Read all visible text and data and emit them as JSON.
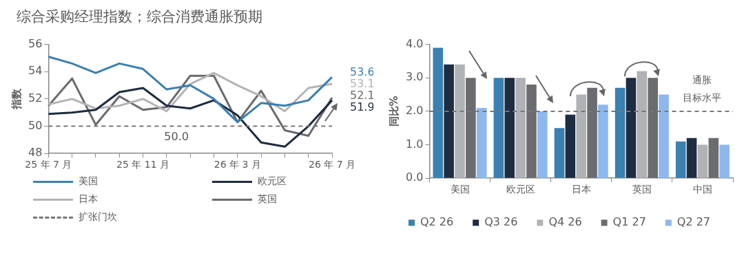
{
  "chart_data": [
    {
      "type": "line",
      "title": "综合采购经理指数；综合消费通胀预期",
      "ylabel": "指数",
      "categories": [
        "25 年 7 月",
        null,
        null,
        null,
        "25 年 11 月",
        null,
        null,
        null,
        "26 年 3 月",
        null,
        null,
        null,
        "26 年 7 月"
      ],
      "series": [
        {
          "name": "美国",
          "color": "#3a7fb0",
          "values": [
            55.1,
            54.6,
            53.9,
            54.6,
            54.2,
            52.7,
            53.0,
            52.0,
            50.3,
            51.7,
            51.5,
            51.9,
            53.6
          ],
          "value_labels": [
            null,
            null,
            null,
            null,
            null,
            null,
            null,
            null,
            null,
            null,
            null,
            null,
            "53.6"
          ]
        },
        {
          "name": "欧元区",
          "color": "#1c2b40",
          "values": [
            50.9,
            51.0,
            51.2,
            52.5,
            52.8,
            51.5,
            51.3,
            51.9,
            50.8,
            48.8,
            48.5,
            50.0,
            51.9
          ],
          "value_labels": [
            null,
            null,
            null,
            null,
            null,
            null,
            null,
            null,
            null,
            null,
            null,
            null,
            "51.9"
          ]
        },
        {
          "name": "日本",
          "color": "#b3b3b6",
          "values": [
            51.6,
            52.0,
            51.3,
            51.5,
            52.0,
            51.1,
            53.1,
            53.9,
            53.0,
            52.2,
            51.1,
            52.8,
            53.1
          ],
          "value_labels": [
            null,
            null,
            null,
            null,
            null,
            null,
            null,
            null,
            null,
            null,
            null,
            null,
            "53.1"
          ]
        },
        {
          "name": "英国",
          "color": "#6a6a6e",
          "values": [
            51.5,
            53.5,
            50.1,
            52.2,
            51.2,
            51.4,
            53.7,
            53.7,
            50.3,
            52.6,
            49.7,
            49.3,
            52.1
          ],
          "value_labels": [
            null,
            null,
            null,
            null,
            null,
            null,
            null,
            null,
            null,
            null,
            null,
            null,
            "52.1"
          ]
        }
      ],
      "ylim": [
        48,
        56
      ],
      "yticks": [
        48,
        50,
        52,
        54,
        56
      ],
      "ref_lines": [
        {
          "axis": "y",
          "value": 50,
          "label": "扩张门坎",
          "color": "#777777",
          "line_style": "dashed"
        }
      ],
      "annotations": [
        {
          "text": "50.0",
          "y": 50
        }
      ],
      "legend": "bottom",
      "grid": false
    },
    {
      "type": "bar",
      "ylabel": "同比%",
      "categories": [
        "美国",
        "欧元区",
        "日本",
        "英国",
        "中国"
      ],
      "series": [
        {
          "name": "Q2 26",
          "color": "#3a80b0",
          "values": [
            3.9,
            3.0,
            1.5,
            2.7,
            1.1
          ]
        },
        {
          "name": "Q3 26",
          "color": "#1e2d42",
          "values": [
            3.4,
            3.0,
            1.9,
            3.0,
            1.2
          ]
        },
        {
          "name": "Q4 26",
          "color": "#b1b2b5",
          "values": [
            3.4,
            3.0,
            2.5,
            3.2,
            1.0
          ]
        },
        {
          "name": "Q1 27",
          "color": "#6b6c70",
          "values": [
            3.0,
            2.8,
            2.7,
            3.0,
            1.2
          ]
        },
        {
          "name": "Q2 27",
          "color": "#8db8ee",
          "values": [
            2.1,
            2.0,
            2.2,
            2.5,
            1.0
          ]
        }
      ],
      "ylim": [
        0,
        4
      ],
      "yticks": [
        {
          "value": 0,
          "label": "0.0"
        },
        {
          "value": 1,
          "label": "1.0"
        },
        {
          "value": 2,
          "label": "2.0"
        },
        {
          "value": 3,
          "label": "3.0"
        },
        {
          "value": 4,
          "label": "4.0"
        }
      ],
      "ref_lines": [
        {
          "axis": "y",
          "value": 2,
          "label": "通胀目标水平",
          "color": "#777777",
          "line_style": "dashed"
        }
      ],
      "legend": "bottom",
      "grid": false
    }
  ]
}
